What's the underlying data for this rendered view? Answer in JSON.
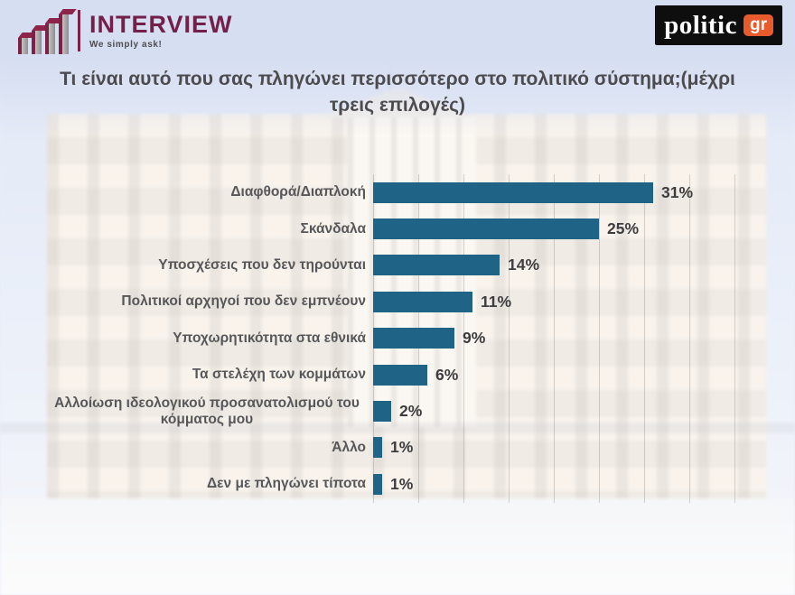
{
  "header": {
    "interview": {
      "name": "INTERVIEW",
      "tagline": "We simply ask!",
      "brand_color": "#721f4a"
    },
    "politic": {
      "name": "politic",
      "suffix": "gr",
      "bg_color": "#0e0e0e",
      "accent_color": "#e95b2d"
    }
  },
  "title": "Τι είναι αυτό που σας πληγώνει περισσότερο στο πολιτικό σύστημα;(μέχρι τρεις επιλογές)",
  "chart_data": {
    "type": "bar",
    "orientation": "horizontal",
    "title": "Τι είναι αυτό που σας πληγώνει περισσότερο στο πολιτικό σύστημα;(μέχρι τρεις επιλογές)",
    "categories": [
      "Διαφθορά/Διαπλοκή",
      "Σκάνδαλα",
      "Υποσχέσεις που δεν τηρούνται",
      "Πολιτικοί αρχηγοί που δεν εμπνέουν",
      "Υποχωρητικότητα στα εθνικά",
      "Τα στελέχη των κομμάτων",
      "Αλλοίωση ιδεολογικού προσανατολισμού του κόμματος μου",
      "Άλλο",
      "Δεν με πληγώνει τίποτα"
    ],
    "values": [
      31,
      25,
      14,
      11,
      9,
      6,
      2,
      1,
      1
    ],
    "unit": "%",
    "bar_color": "#1f6486",
    "label_color": "#57575a",
    "xlim": [
      0,
      40
    ],
    "gridline_step": 5,
    "grid": "vertical-faint",
    "legend": "none"
  }
}
